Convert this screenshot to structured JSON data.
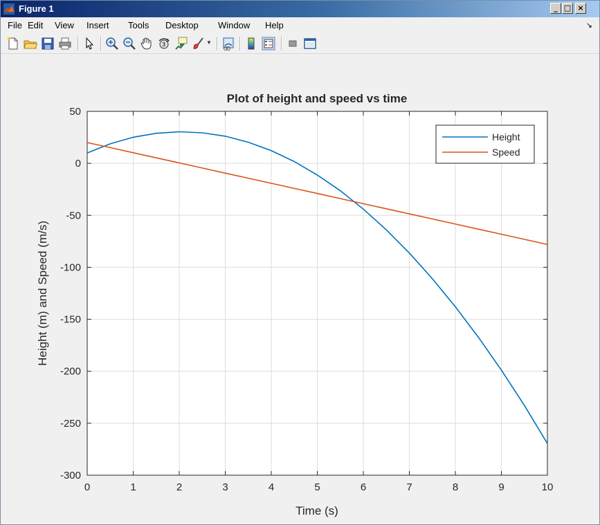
{
  "window": {
    "title": "Figure 1"
  },
  "menu": [
    "File",
    "Edit",
    "View",
    "Insert",
    "Tools",
    "Desktop",
    "Window",
    "Help"
  ],
  "toolbar_icons": [
    "new-figure-icon",
    "open-file-icon",
    "save-icon",
    "print-icon",
    "pointer-icon",
    "zoom-in-icon",
    "zoom-out-icon",
    "pan-icon",
    "rotate-3d-icon",
    "data-cursor-icon",
    "brush-icon",
    "brush-dropdown-icon",
    "link-plot-icon",
    "colorbar-icon",
    "legend-icon",
    "hide-plot-tools-icon",
    "show-plot-tools-icon"
  ],
  "colors": {
    "height": "#0072BD",
    "speed": "#D95319"
  },
  "chart_data": {
    "type": "line",
    "title": "Plot of height and speed vs time",
    "xlabel": "Time (s)",
    "ylabel": "Height (m) and Speed (m/s)",
    "xlim": [
      0,
      10
    ],
    "ylim": [
      -300,
      50
    ],
    "xticks": [
      "0",
      "1",
      "2",
      "3",
      "4",
      "5",
      "6",
      "7",
      "8",
      "9",
      "10"
    ],
    "yticks": [
      "50",
      "0",
      "-50",
      "-100",
      "-150",
      "-200",
      "-250",
      "-300"
    ],
    "grid": true,
    "legend_position": "top-right",
    "x": [
      0,
      0.5,
      1,
      1.5,
      2,
      2.5,
      3,
      3.5,
      4,
      4.5,
      5,
      5.5,
      6,
      6.5,
      7,
      7.5,
      8,
      8.5,
      9,
      9.5,
      10
    ],
    "series": [
      {
        "name": "Height",
        "values": [
          10,
          18.8,
          25.1,
          28.9,
          30.4,
          29.4,
          26.1,
          20.3,
          12.2,
          1.7,
          -11.2,
          -26.4,
          -44,
          -64,
          -86.3,
          -111,
          -138,
          -167.3,
          -198.9,
          -232.9,
          -269.5
        ]
      },
      {
        "name": "Speed",
        "values": [
          20,
          15.1,
          10.2,
          5.3,
          0.4,
          -4.5,
          -9.4,
          -14.3,
          -19.2,
          -24.1,
          -29,
          -33.9,
          -38.8,
          -43.7,
          -48.6,
          -53.5,
          -58.4,
          -63.3,
          -68.2,
          -73.1,
          -78
        ]
      }
    ]
  }
}
